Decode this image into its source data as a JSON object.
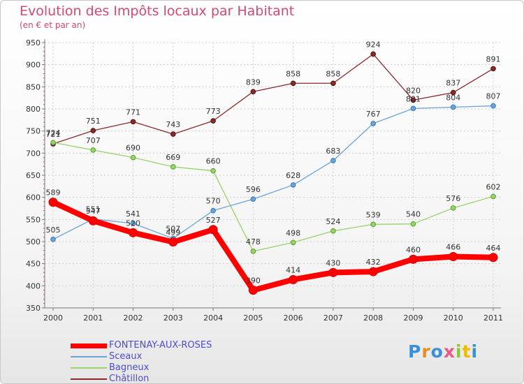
{
  "header": {
    "title": "Evolution des Impôts locaux par Habitant",
    "subtitle": "(en € et par an)"
  },
  "logo": {
    "text": "Proxiti",
    "colors": [
      "#3a8fd8",
      "#f08a1c",
      "#3a8fd8",
      "#e85a8a",
      "#8cc63f",
      "#f5b800",
      "#3a8fd8"
    ]
  },
  "chart_data": {
    "type": "line",
    "title": "Evolution des Impôts locaux par Habitant",
    "subtitle": "(en € et par an)",
    "x": [
      "2000",
      "2001",
      "2002",
      "2003",
      "2004",
      "2005",
      "2006",
      "2007",
      "2008",
      "2009",
      "2010",
      "2011"
    ],
    "ylim": [
      350,
      950
    ],
    "yticks": [
      350,
      400,
      450,
      500,
      550,
      600,
      650,
      700,
      750,
      800,
      850,
      900,
      950
    ],
    "grid": true,
    "legend": "bottom-left",
    "series": [
      {
        "name": "FONTENAY-AUX-ROSES",
        "color": "#ff0000",
        "values": [
          589,
          547,
          520,
          499,
          527,
          390,
          414,
          430,
          432,
          460,
          466,
          464
        ]
      },
      {
        "name": "Sceaux",
        "color": "#6aa5d8",
        "values": [
          505,
          551,
          541,
          507,
          570,
          596,
          628,
          683,
          767,
          801,
          804,
          807
        ]
      },
      {
        "name": "Bagneux",
        "color": "#99d36b",
        "values": [
          724,
          707,
          690,
          669,
          660,
          478,
          498,
          524,
          539,
          540,
          576,
          602
        ]
      },
      {
        "name": "Châtillon",
        "color": "#8b2a2a",
        "values": [
          721,
          751,
          771,
          743,
          773,
          839,
          858,
          858,
          924,
          820,
          837,
          891
        ]
      }
    ]
  }
}
